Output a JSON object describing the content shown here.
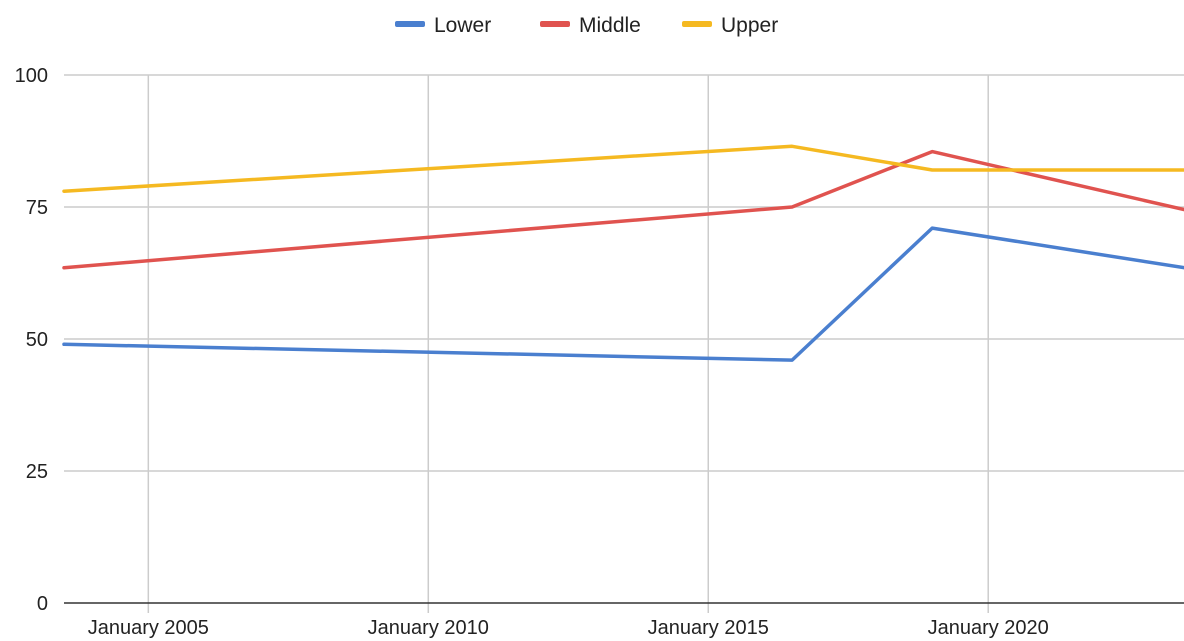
{
  "chart_data": {
    "type": "line",
    "title": "",
    "xlabel": "",
    "ylabel": "",
    "x_axis": {
      "type": "date",
      "range": [
        "2003-07-01",
        "2023-07-01"
      ],
      "ticks": [
        {
          "date": "2005-01-01",
          "label": "January 2005"
        },
        {
          "date": "2010-01-01",
          "label": "January 2010"
        },
        {
          "date": "2015-01-01",
          "label": "January 2015"
        },
        {
          "date": "2020-01-01",
          "label": "January 2020"
        }
      ]
    },
    "y_axis": {
      "range": [
        0,
        100
      ],
      "ticks": [
        {
          "value": 0,
          "label": "0"
        },
        {
          "value": 25,
          "label": "25"
        },
        {
          "value": 50,
          "label": "50"
        },
        {
          "value": 75,
          "label": "75"
        },
        {
          "value": 100,
          "label": "100"
        }
      ]
    },
    "grid": true,
    "legend": {
      "position": "top-center"
    },
    "series": [
      {
        "name": "Lower",
        "color": "#4a7fcf",
        "points": [
          {
            "x": "2003-07-01",
            "y": 49
          },
          {
            "x": "2016-07-01",
            "y": 46
          },
          {
            "x": "2019-01-01",
            "y": 71
          },
          {
            "x": "2023-07-01",
            "y": 63.5
          }
        ]
      },
      {
        "name": "Middle",
        "color": "#e0534f",
        "points": [
          {
            "x": "2003-07-01",
            "y": 63.5
          },
          {
            "x": "2016-07-01",
            "y": 75
          },
          {
            "x": "2019-01-01",
            "y": 85.5
          },
          {
            "x": "2023-07-01",
            "y": 74.5
          }
        ]
      },
      {
        "name": "Upper",
        "color": "#f5b921",
        "points": [
          {
            "x": "2003-07-01",
            "y": 78
          },
          {
            "x": "2016-07-01",
            "y": 86.5
          },
          {
            "x": "2019-01-01",
            "y": 82
          },
          {
            "x": "2023-07-01",
            "y": 82
          }
        ]
      }
    ]
  }
}
